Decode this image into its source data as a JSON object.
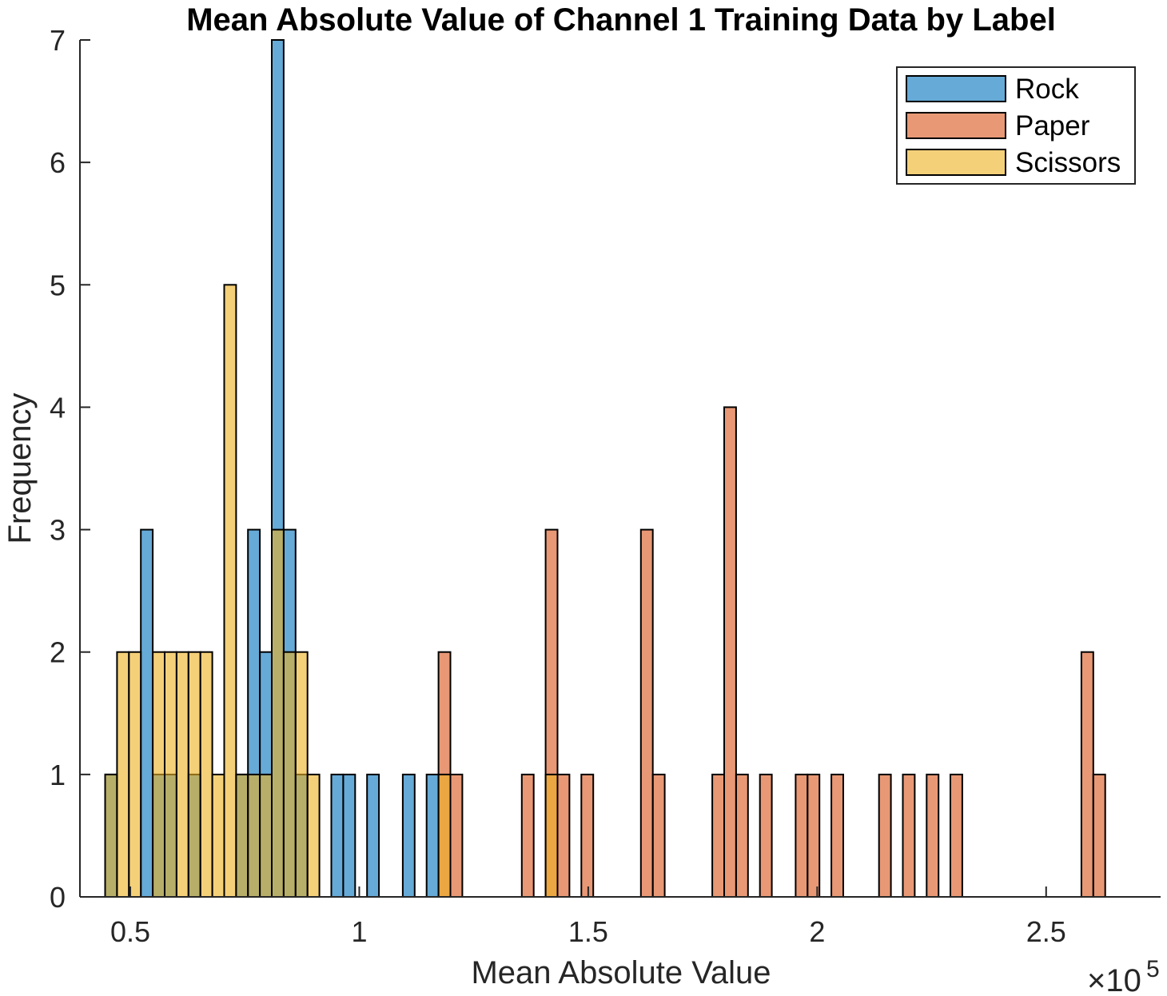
{
  "chart_data": {
    "type": "bar",
    "title": "Mean Absolute Value of Channel 1 Training Data by Label",
    "xlabel": "Mean Absolute Value",
    "ylabel": "Frequency",
    "x_exponent_base": "×10",
    "x_exponent_power": "5",
    "xlim": [
      0.39,
      2.75
    ],
    "ylim": [
      0,
      7
    ],
    "x_ticks": [
      0.5,
      1,
      1.5,
      2,
      2.5
    ],
    "x_tick_labels": [
      "0.5",
      "1",
      "1.5",
      "2",
      "2.5"
    ],
    "y_ticks": [
      0,
      1,
      2,
      3,
      4,
      5,
      6,
      7
    ],
    "y_tick_labels": [
      "0",
      "1",
      "2",
      "3",
      "4",
      "5",
      "6",
      "7"
    ],
    "bin_width": 0.026,
    "bar_alpha": 0.6,
    "grid": false,
    "legend_position": "top-right",
    "series": [
      {
        "name": "Rock",
        "color": "#0072BD",
        "bins": [
          {
            "x": 0.458,
            "count": 1
          },
          {
            "x": 0.536,
            "count": 3
          },
          {
            "x": 0.562,
            "count": 1
          },
          {
            "x": 0.588,
            "count": 1
          },
          {
            "x": 0.64,
            "count": 1
          },
          {
            "x": 0.744,
            "count": 1
          },
          {
            "x": 0.77,
            "count": 3
          },
          {
            "x": 0.796,
            "count": 2
          },
          {
            "x": 0.822,
            "count": 7
          },
          {
            "x": 0.848,
            "count": 3
          },
          {
            "x": 0.874,
            "count": 1
          },
          {
            "x": 0.952,
            "count": 1
          },
          {
            "x": 0.978,
            "count": 1
          },
          {
            "x": 1.03,
            "count": 1
          },
          {
            "x": 1.108,
            "count": 1
          },
          {
            "x": 1.16,
            "count": 1
          }
        ]
      },
      {
        "name": "Paper",
        "color": "#D95319",
        "bins": [
          {
            "x": 1.186,
            "count": 2
          },
          {
            "x": 1.212,
            "count": 1
          },
          {
            "x": 1.368,
            "count": 1
          },
          {
            "x": 1.42,
            "count": 3
          },
          {
            "x": 1.446,
            "count": 1
          },
          {
            "x": 1.498,
            "count": 1
          },
          {
            "x": 1.628,
            "count": 3
          },
          {
            "x": 1.654,
            "count": 1
          },
          {
            "x": 1.784,
            "count": 1
          },
          {
            "x": 1.81,
            "count": 4
          },
          {
            "x": 1.836,
            "count": 1
          },
          {
            "x": 1.888,
            "count": 1
          },
          {
            "x": 1.966,
            "count": 1
          },
          {
            "x": 1.992,
            "count": 1
          },
          {
            "x": 2.044,
            "count": 1
          },
          {
            "x": 2.148,
            "count": 1
          },
          {
            "x": 2.2,
            "count": 1
          },
          {
            "x": 2.252,
            "count": 1
          },
          {
            "x": 2.304,
            "count": 1
          },
          {
            "x": 2.59,
            "count": 2
          },
          {
            "x": 2.616,
            "count": 1
          }
        ]
      },
      {
        "name": "Scissors",
        "color": "#EDB120",
        "bins": [
          {
            "x": 0.458,
            "count": 1
          },
          {
            "x": 0.484,
            "count": 2
          },
          {
            "x": 0.51,
            "count": 2
          },
          {
            "x": 0.562,
            "count": 2
          },
          {
            "x": 0.588,
            "count": 2
          },
          {
            "x": 0.614,
            "count": 2
          },
          {
            "x": 0.64,
            "count": 2
          },
          {
            "x": 0.666,
            "count": 2
          },
          {
            "x": 0.692,
            "count": 1
          },
          {
            "x": 0.718,
            "count": 5
          },
          {
            "x": 0.744,
            "count": 1
          },
          {
            "x": 0.77,
            "count": 1
          },
          {
            "x": 0.796,
            "count": 1
          },
          {
            "x": 0.822,
            "count": 3
          },
          {
            "x": 0.848,
            "count": 2
          },
          {
            "x": 0.874,
            "count": 2
          },
          {
            "x": 0.9,
            "count": 1
          },
          {
            "x": 1.186,
            "count": 1
          },
          {
            "x": 1.42,
            "count": 1
          }
        ]
      }
    ]
  }
}
